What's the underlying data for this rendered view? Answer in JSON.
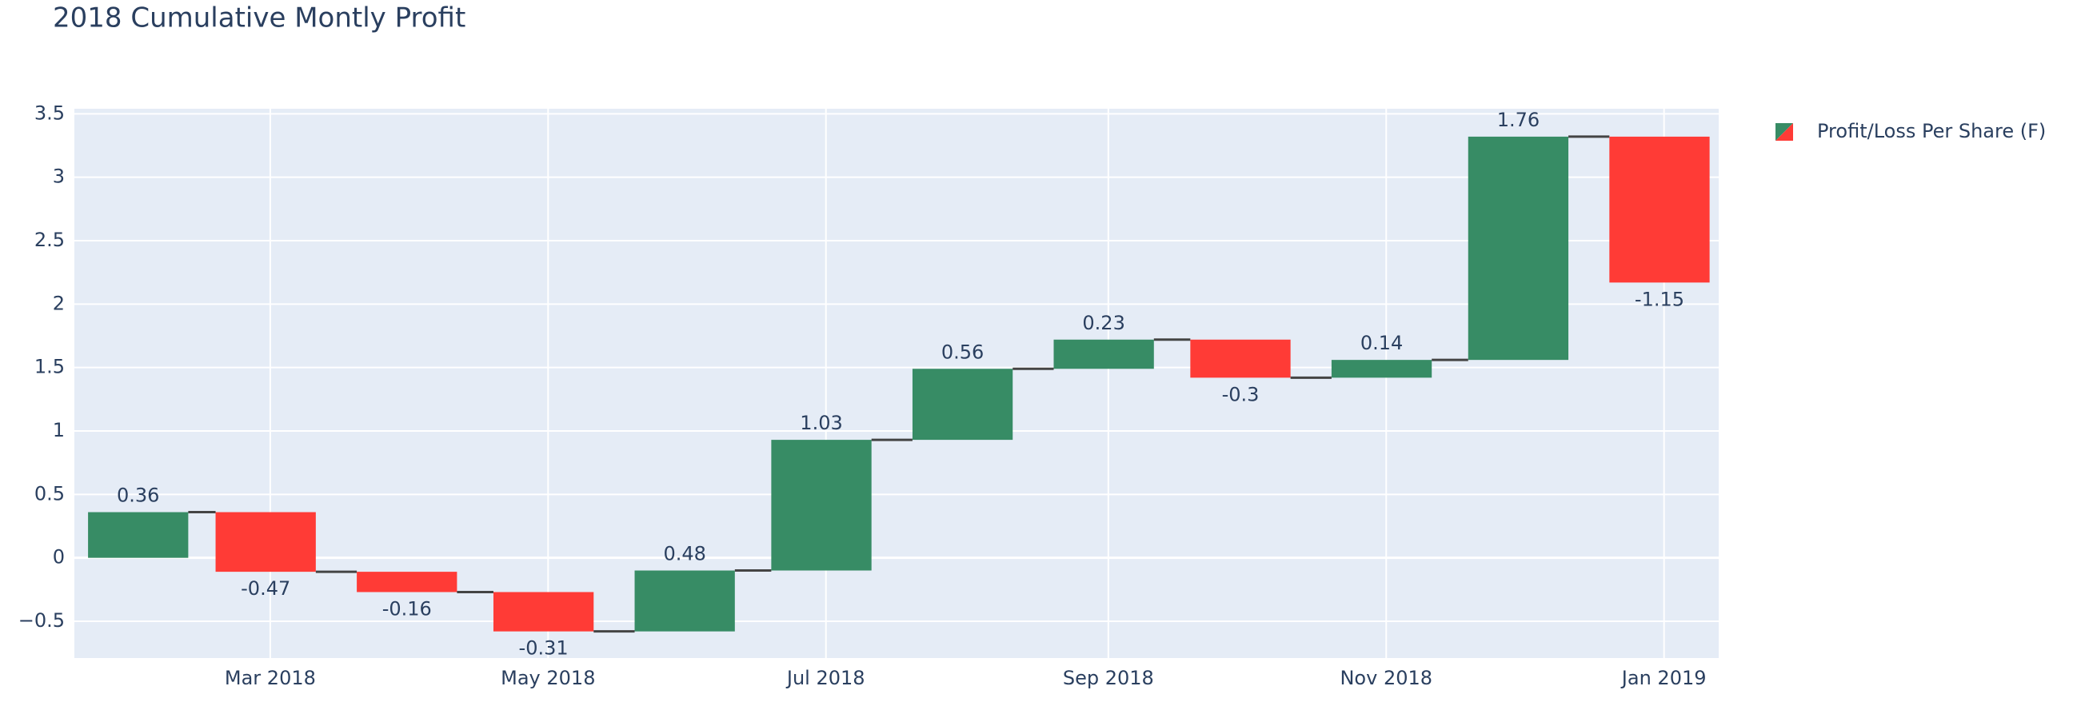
{
  "chart_data": {
    "type": "waterfall",
    "title": "2018 Cumulative Montly Profit",
    "x": [
      "2018-01",
      "2018-02",
      "2018-03",
      "2018-04",
      "2018-05",
      "2018-06",
      "2018-07",
      "2018-08",
      "2018-09",
      "2018-10",
      "2018-11",
      "2018-12"
    ],
    "series": [
      {
        "name": "Profit/Loss Per Share (F)",
        "values": [
          0.36,
          -0.47,
          -0.16,
          -0.31,
          0.48,
          1.03,
          0.56,
          0.23,
          -0.3,
          0.14,
          1.76,
          -1.15
        ],
        "increasing_color": "#378c65",
        "decreasing_color": "#ff3b36"
      }
    ],
    "xlim": [
      "2018-01-17",
      "2019-01-13"
    ],
    "xticks": [
      {
        "value": "2018-03-01",
        "label": "Mar 2018"
      },
      {
        "value": "2018-05-01",
        "label": "May 2018"
      },
      {
        "value": "2018-07-01",
        "label": "Jul 2018"
      },
      {
        "value": "2018-09-01",
        "label": "Sep 2018"
      },
      {
        "value": "2018-11-01",
        "label": "Nov 2018"
      },
      {
        "value": "2019-01-01",
        "label": "Jan 2019"
      }
    ],
    "ylim": [
      -0.79,
      3.54
    ],
    "yticks": [
      {
        "value": -0.5,
        "label": "−0.5"
      },
      0,
      0.5,
      1,
      1.5,
      2,
      2.5,
      3,
      3.5
    ],
    "grid": true,
    "legend": "top-right"
  }
}
